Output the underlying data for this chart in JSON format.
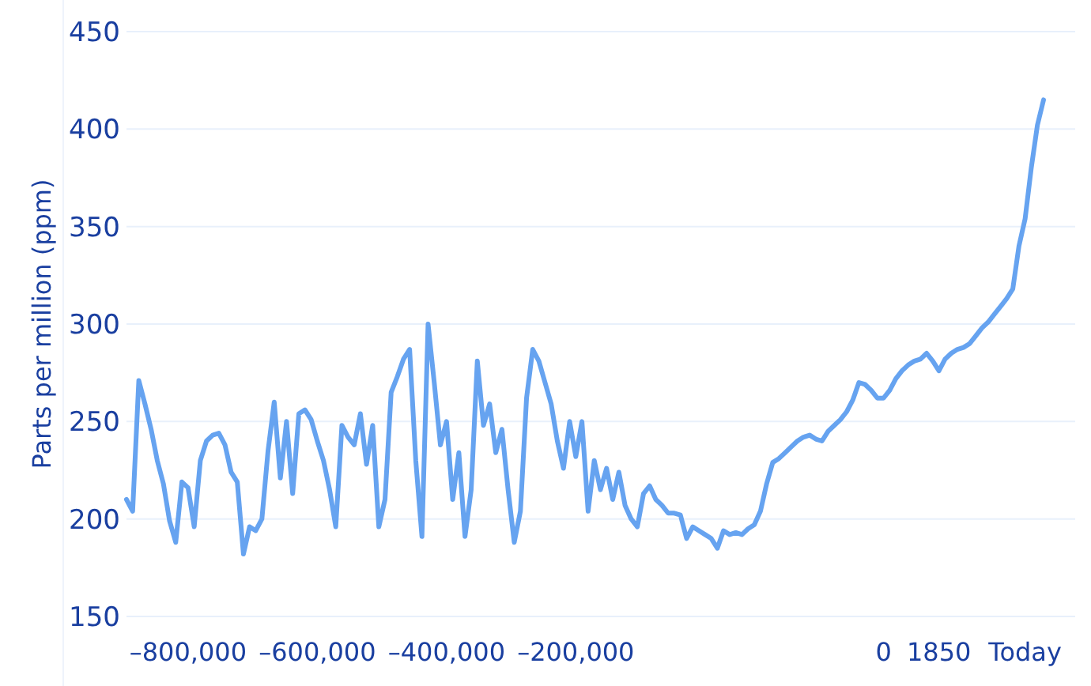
{
  "chart_data": {
    "type": "line",
    "ylabel": "Parts per million (ppm)",
    "categories": [
      null,
      null,
      null,
      null,
      null,
      null,
      null,
      null,
      null,
      null,
      "–800,000",
      null,
      null,
      null,
      null,
      null,
      null,
      null,
      null,
      null,
      null,
      null,
      null,
      null,
      null,
      null,
      null,
      null,
      null,
      null,
      null,
      "–600,000",
      null,
      null,
      null,
      null,
      null,
      null,
      null,
      null,
      null,
      null,
      null,
      null,
      null,
      null,
      null,
      null,
      null,
      null,
      null,
      null,
      "–400,000",
      null,
      null,
      null,
      null,
      null,
      null,
      null,
      null,
      null,
      null,
      null,
      null,
      null,
      null,
      null,
      null,
      null,
      null,
      null,
      null,
      "–200,000",
      null,
      null,
      null,
      null,
      null,
      null,
      null,
      null,
      null,
      null,
      null,
      null,
      null,
      null,
      null,
      null,
      null,
      null,
      null,
      null,
      null,
      null,
      null,
      null,
      null,
      null,
      null,
      null,
      null,
      null,
      null,
      null,
      null,
      null,
      null,
      null,
      null,
      null,
      null,
      null,
      null,
      null,
      null,
      null,
      null,
      null,
      null,
      null,
      null,
      "0",
      null,
      null,
      null,
      null,
      null,
      null,
      null,
      null,
      "1850",
      null,
      null,
      null,
      null,
      null,
      null,
      null,
      null,
      null,
      null,
      null,
      null,
      null,
      "Today",
      null,
      null,
      null
    ],
    "series": [
      {
        "color": "#66a3f0",
        "values": [
          210,
          204,
          271,
          259,
          246,
          230,
          218,
          199,
          188,
          219,
          216,
          196,
          230,
          240,
          243,
          244,
          238,
          224,
          219,
          182,
          196,
          194,
          200,
          235,
          260,
          221,
          250,
          213,
          254,
          256,
          251,
          240,
          230,
          215,
          196,
          248,
          242,
          238,
          254,
          228,
          248,
          196,
          210,
          265,
          273,
          282,
          287,
          230,
          191,
          300,
          270,
          238,
          250,
          210,
          234,
          191,
          215,
          281,
          248,
          259,
          234,
          246,
          215,
          188,
          204,
          262,
          287,
          281,
          270,
          259,
          240,
          226,
          250,
          232,
          250,
          204,
          230,
          215,
          226,
          210,
          224,
          207,
          200,
          196,
          213,
          217,
          210,
          207,
          203,
          203,
          202,
          190,
          196,
          194,
          192,
          190,
          185,
          194,
          192,
          193,
          192,
          195,
          197,
          204,
          218,
          229,
          231,
          234,
          237,
          240,
          242,
          243,
          241,
          240,
          245,
          248,
          251,
          255,
          261,
          270,
          269,
          266,
          262,
          262,
          266,
          272,
          276,
          279,
          281,
          282,
          285,
          281,
          276,
          282,
          285,
          287,
          288,
          290,
          294,
          298,
          301,
          305,
          309,
          313,
          318,
          340,
          354,
          380,
          402,
          415
        ]
      }
    ],
    "ylim": [
      150,
      450
    ],
    "yticks": [
      150,
      200,
      250,
      300,
      350,
      400,
      450
    ],
    "grid": "y",
    "marker": "none",
    "line_style": "solid"
  }
}
